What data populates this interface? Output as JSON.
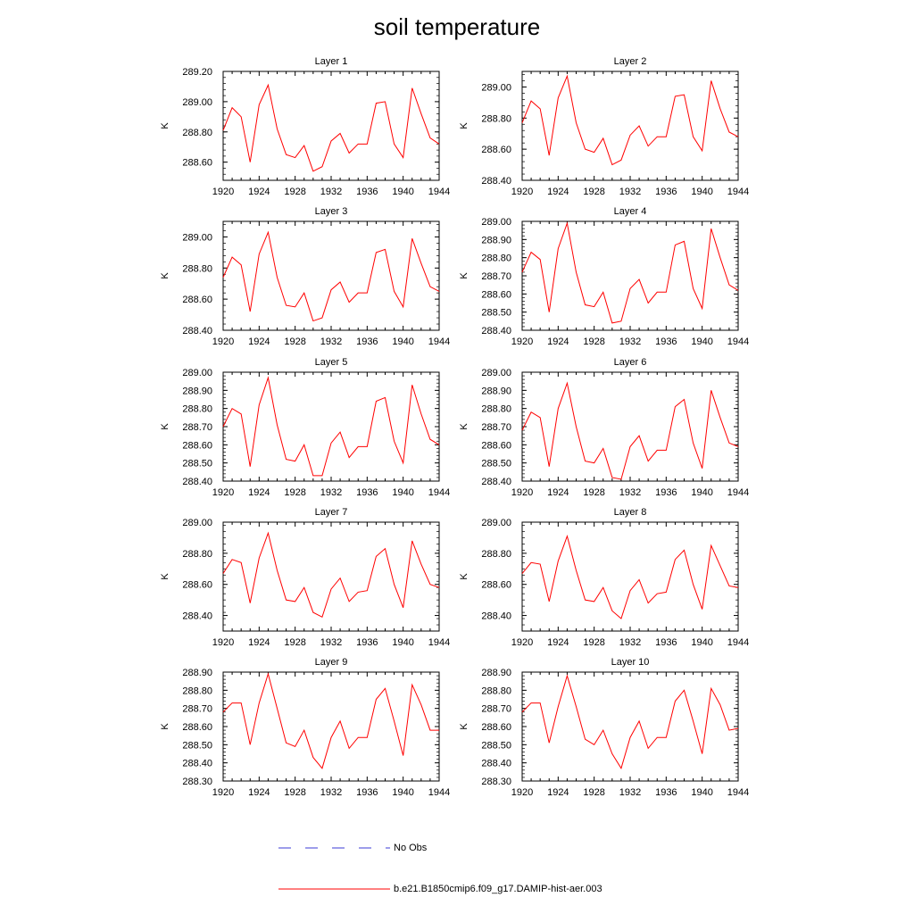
{
  "chart_data": {
    "title": "soil temperature",
    "type": "line",
    "x": [
      1920,
      1921,
      1922,
      1923,
      1924,
      1925,
      1926,
      1927,
      1928,
      1929,
      1930,
      1931,
      1932,
      1933,
      1934,
      1935,
      1936,
      1937,
      1938,
      1939,
      1940,
      1941,
      1942,
      1943,
      1944
    ],
    "xticks": [
      1920,
      1924,
      1928,
      1932,
      1936,
      1940,
      1944
    ],
    "xlim": [
      1920,
      1944
    ],
    "legend": [
      {
        "label": "No Obs",
        "color": "#3b3bd6",
        "style": "dashed"
      },
      {
        "label": "b.e21.B1850cmip6.f09_g17.DAMIP-hist-aer.003",
        "color": "#ff0000",
        "style": "solid"
      }
    ],
    "panels": [
      {
        "title": "Layer 1",
        "ylabel": "K",
        "ylim": [
          288.48,
          289.2
        ],
        "yticks": [
          "289.20",
          "289.00",
          "288.80",
          "288.60"
        ],
        "ytick_values": [
          289.2,
          289.0,
          288.8,
          288.6
        ],
        "series": [
          {
            "values": [
              288.81,
              288.96,
              288.9,
              288.6,
              288.98,
              289.11,
              288.82,
              288.65,
              288.63,
              288.71,
              288.54,
              288.57,
              288.74,
              288.79,
              288.66,
              288.72,
              288.72,
              288.99,
              289.0,
              288.72,
              288.63,
              289.09,
              288.92,
              288.76,
              288.72
            ]
          }
        ]
      },
      {
        "title": "Layer 2",
        "ylabel": "K",
        "ylim": [
          288.4,
          289.1
        ],
        "yticks": [
          "289.00",
          "288.80",
          "288.60",
          "288.40"
        ],
        "ytick_values": [
          289.0,
          288.8,
          288.6,
          288.4
        ],
        "series": [
          {
            "values": [
              288.77,
              288.91,
              288.86,
              288.56,
              288.93,
              289.07,
              288.77,
              288.6,
              288.58,
              288.67,
              288.5,
              288.53,
              288.69,
              288.75,
              288.62,
              288.68,
              288.68,
              288.94,
              288.95,
              288.68,
              288.59,
              289.04,
              288.86,
              288.71,
              288.68
            ]
          }
        ]
      },
      {
        "title": "Layer 3",
        "ylabel": "K",
        "ylim": [
          288.4,
          289.1
        ],
        "yticks": [
          "289.00",
          "288.80",
          "288.60",
          "288.40"
        ],
        "ytick_values": [
          289.0,
          288.8,
          288.6,
          288.4
        ],
        "series": [
          {
            "values": [
              288.74,
              288.87,
              288.82,
              288.52,
              288.89,
              289.03,
              288.74,
              288.56,
              288.55,
              288.64,
              288.46,
              288.48,
              288.66,
              288.71,
              288.58,
              288.64,
              288.64,
              288.9,
              288.92,
              288.65,
              288.55,
              288.99,
              288.83,
              288.68,
              288.65
            ]
          }
        ]
      },
      {
        "title": "Layer 4",
        "ylabel": "K",
        "ylim": [
          288.4,
          289.0
        ],
        "yticks": [
          "289.00",
          "288.90",
          "288.80",
          "288.70",
          "288.60",
          "288.50",
          "288.40"
        ],
        "ytick_values": [
          289.0,
          288.9,
          288.8,
          288.7,
          288.6,
          288.5,
          288.4
        ],
        "series": [
          {
            "values": [
              288.72,
              288.83,
              288.79,
              288.5,
              288.85,
              288.99,
              288.72,
              288.54,
              288.53,
              288.61,
              288.44,
              288.45,
              288.63,
              288.68,
              288.55,
              288.61,
              288.61,
              288.87,
              288.89,
              288.63,
              288.52,
              288.96,
              288.8,
              288.65,
              288.62
            ]
          }
        ]
      },
      {
        "title": "Layer 5",
        "ylabel": "K",
        "ylim": [
          288.4,
          289.0
        ],
        "yticks": [
          "289.00",
          "288.90",
          "288.80",
          "288.70",
          "288.60",
          "288.50",
          "288.40"
        ],
        "ytick_values": [
          289.0,
          288.9,
          288.8,
          288.7,
          288.6,
          288.5,
          288.4
        ],
        "series": [
          {
            "values": [
              288.7,
              288.8,
              288.77,
              288.48,
              288.82,
              288.97,
              288.71,
              288.52,
              288.51,
              288.6,
              288.43,
              288.43,
              288.61,
              288.67,
              288.53,
              288.59,
              288.59,
              288.84,
              288.86,
              288.62,
              288.5,
              288.93,
              288.77,
              288.63,
              288.6
            ]
          }
        ]
      },
      {
        "title": "Layer 6",
        "ylabel": "K",
        "ylim": [
          288.4,
          289.0
        ],
        "yticks": [
          "289.00",
          "288.90",
          "288.80",
          "288.70",
          "288.60",
          "288.50",
          "288.40"
        ],
        "ytick_values": [
          289.0,
          288.9,
          288.8,
          288.7,
          288.6,
          288.5,
          288.4
        ],
        "series": [
          {
            "values": [
              288.68,
              288.78,
              288.75,
              288.48,
              288.8,
              288.94,
              288.7,
              288.51,
              288.5,
              288.58,
              288.42,
              288.41,
              288.59,
              288.65,
              288.51,
              288.57,
              288.57,
              288.81,
              288.85,
              288.61,
              288.47,
              288.9,
              288.75,
              288.61,
              288.59
            ]
          }
        ]
      },
      {
        "title": "Layer 7",
        "ylabel": "K",
        "ylim": [
          288.3,
          289.0
        ],
        "yticks": [
          "289.00",
          "288.80",
          "288.60",
          "288.40"
        ],
        "ytick_values": [
          289.0,
          288.8,
          288.6,
          288.4
        ],
        "series": [
          {
            "values": [
              288.67,
              288.76,
              288.74,
              288.48,
              288.77,
              288.93,
              288.69,
              288.5,
              288.49,
              288.58,
              288.42,
              288.39,
              288.57,
              288.64,
              288.49,
              288.55,
              288.56,
              288.78,
              288.83,
              288.6,
              288.45,
              288.88,
              288.73,
              288.6,
              288.58
            ]
          }
        ]
      },
      {
        "title": "Layer 8",
        "ylabel": "K",
        "ylim": [
          288.3,
          289.0
        ],
        "yticks": [
          "289.00",
          "288.80",
          "288.60",
          "288.40"
        ],
        "ytick_values": [
          289.0,
          288.8,
          288.6,
          288.4
        ],
        "series": [
          {
            "values": [
              288.67,
              288.74,
              288.73,
              288.49,
              288.75,
              288.91,
              288.69,
              288.5,
              288.49,
              288.58,
              288.43,
              288.38,
              288.56,
              288.63,
              288.48,
              288.54,
              288.55,
              288.76,
              288.82,
              288.6,
              288.44,
              288.85,
              288.72,
              288.59,
              288.58
            ]
          }
        ]
      },
      {
        "title": "Layer 9",
        "ylabel": "K",
        "ylim": [
          288.3,
          288.9
        ],
        "yticks": [
          "288.90",
          "288.80",
          "288.70",
          "288.60",
          "288.50",
          "288.40",
          "288.30"
        ],
        "ytick_values": [
          288.9,
          288.8,
          288.7,
          288.6,
          288.5,
          288.4,
          288.3
        ],
        "series": [
          {
            "values": [
              288.68,
              288.73,
              288.73,
              288.5,
              288.73,
              288.89,
              288.7,
              288.51,
              288.49,
              288.58,
              288.43,
              288.37,
              288.54,
              288.63,
              288.48,
              288.54,
              288.54,
              288.75,
              288.81,
              288.63,
              288.44,
              288.83,
              288.72,
              288.58,
              288.58
            ]
          }
        ]
      },
      {
        "title": "Layer 10",
        "ylabel": "K",
        "ylim": [
          288.3,
          288.9
        ],
        "yticks": [
          "288.90",
          "288.80",
          "288.70",
          "288.60",
          "288.50",
          "288.40",
          "288.30"
        ],
        "ytick_values": [
          288.9,
          288.8,
          288.7,
          288.6,
          288.5,
          288.4,
          288.3
        ],
        "series": [
          {
            "values": [
              288.68,
              288.73,
              288.73,
              288.51,
              288.71,
              288.88,
              288.71,
              288.53,
              288.5,
              288.58,
              288.45,
              288.37,
              288.54,
              288.63,
              288.48,
              288.54,
              288.54,
              288.74,
              288.8,
              288.63,
              288.45,
              288.81,
              288.72,
              288.58,
              288.59
            ]
          }
        ]
      }
    ]
  }
}
